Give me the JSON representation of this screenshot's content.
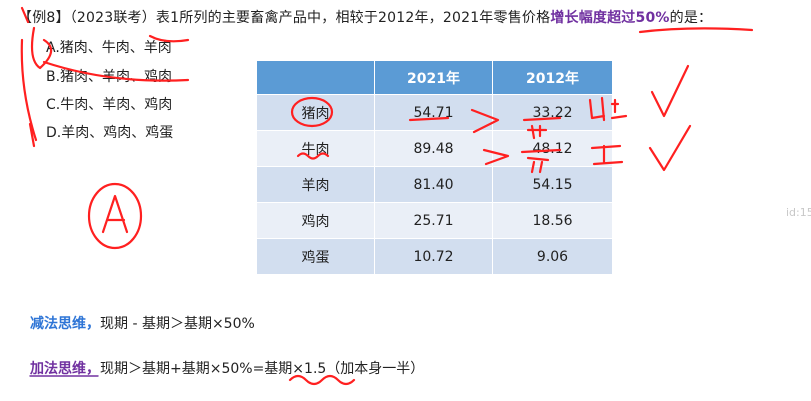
{
  "question": {
    "prefix": "【例8】（2023联考）表1所列的主要畜禽产品中，相较于2012年，2021年零售价格",
    "highlight": "增长幅度超过50%",
    "suffix": "的是："
  },
  "options": [
    {
      "label": "A.猪肉、牛肉、羊肉"
    },
    {
      "label": "B.猪肉、羊肉、鸡肉"
    },
    {
      "label": "C.牛肉、羊肉、鸡肉"
    },
    {
      "label": "D.羊肉、鸡肉、鸡蛋"
    }
  ],
  "table": {
    "headers": [
      "",
      "2021年",
      "2012年"
    ],
    "rows": [
      [
        "猪肉",
        "54.71",
        "33.22"
      ],
      [
        "牛肉",
        "89.48",
        "48.12"
      ],
      [
        "羊肉",
        "81.40",
        "54.15"
      ],
      [
        "鸡肉",
        "25.71",
        "18.56"
      ],
      [
        "鸡蛋",
        "10.72",
        "9.06"
      ]
    ]
  },
  "method1": {
    "title": "减法思维，",
    "text": "现期 - 基期＞基期×50%"
  },
  "method2": {
    "title": "加法思维，",
    "text": "现期＞基期+基期×50%=基期×1.5（加本身一半）"
  },
  "watermark": "id:15",
  "colors": {
    "header": "#5b9bd5",
    "row_dark": "#d2deef",
    "row_light": "#eaeff7",
    "ink": "#ff2020",
    "highlight": "#7030a0",
    "blue_title": "#2e75d6"
  }
}
